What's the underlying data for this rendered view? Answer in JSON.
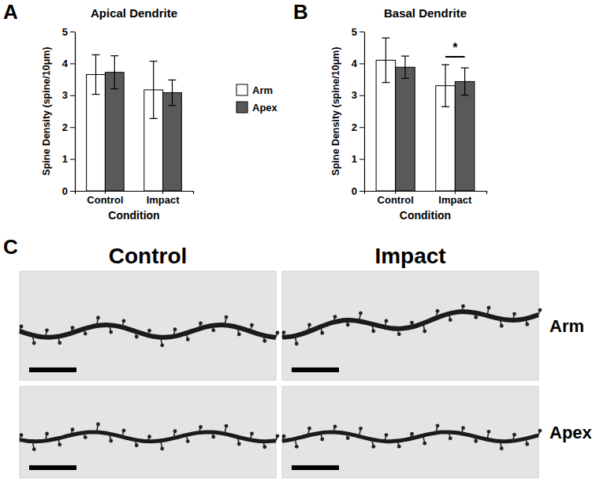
{
  "chart_data": [
    {
      "type": "bar",
      "panel": "A",
      "title": "Apical Dendrite",
      "x_label": "Condition",
      "y_label": "Spine Density (spine/10μm)",
      "categories": [
        "Control",
        "Impact"
      ],
      "series": [
        {
          "name": "Arm",
          "color": "#ffffff",
          "values": [
            3.65,
            3.17
          ],
          "errors": [
            0.62,
            0.9
          ]
        },
        {
          "name": "Apex",
          "color": "#595959",
          "values": [
            3.72,
            3.08
          ],
          "errors": [
            0.52,
            0.4
          ]
        }
      ],
      "ylim": [
        0,
        5
      ],
      "yticks": [
        0,
        1,
        2,
        3,
        4,
        5
      ],
      "grid": false,
      "legend": "right"
    },
    {
      "type": "bar",
      "panel": "B",
      "title": "Basal Dendrite",
      "x_label": "Condition",
      "y_label": "Spine Density (spine/10μm)",
      "categories": [
        "Control",
        "Impact"
      ],
      "series": [
        {
          "color": "#ffffff",
          "values": [
            4.1,
            3.3
          ],
          "errors": [
            0.7,
            0.66
          ]
        },
        {
          "color": "#595959",
          "values": [
            3.88,
            3.43
          ],
          "errors": [
            0.35,
            0.43
          ]
        }
      ],
      "ylim": [
        0,
        5
      ],
      "yticks": [
        0,
        1,
        2,
        3,
        4,
        5
      ],
      "grid": false,
      "annotations": [
        {
          "text": "*",
          "category": "Impact"
        }
      ]
    }
  ],
  "panel_c": {
    "label": "C",
    "columns": [
      "Control",
      "Impact"
    ],
    "rows": [
      "Arm",
      "Apex"
    ]
  }
}
